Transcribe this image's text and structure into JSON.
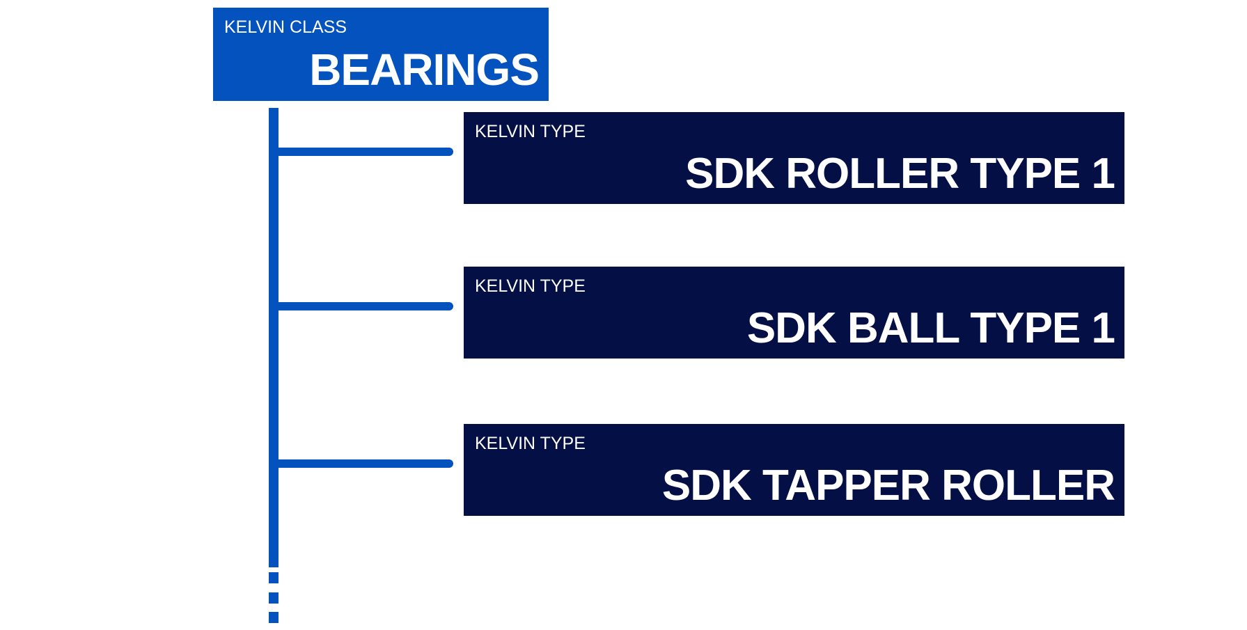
{
  "header": {
    "label": "KELVIN CLASS",
    "title": "BEARINGS"
  },
  "items": [
    {
      "label": "KELVIN TYPE",
      "name": "SDK ROLLER TYPE 1"
    },
    {
      "label": "KELVIN TYPE",
      "name": "SDK BALL TYPE 1"
    },
    {
      "label": "KELVIN TYPE",
      "name": "SDK TAPPER ROLLER"
    }
  ]
}
